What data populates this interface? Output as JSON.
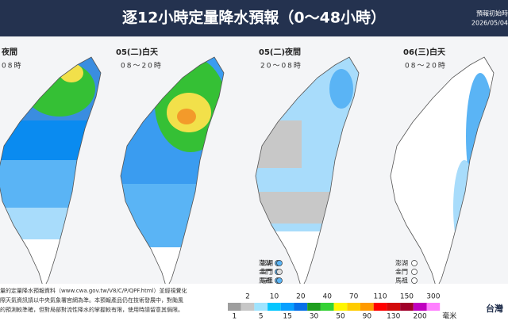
{
  "header": {
    "title": "逐12小時定量降水預報（0～48小時）",
    "issue_label": "預報初始時",
    "issue_time": "2026/05/04"
  },
  "panels": [
    {
      "label": "夜間",
      "time": "08時"
    },
    {
      "label": "05(二)白天",
      "time": "08～20時"
    },
    {
      "label": "05(二)夜間",
      "time": "20～08時"
    },
    {
      "label": "06(三)白天",
      "time": "08～20時"
    }
  ],
  "islands": {
    "names": [
      "澎湖",
      "金門",
      "馬祖"
    ]
  },
  "notes": [
    "量的定量降水預報資料（www.cwa.gov.tw/V8/C/P/QPF.html）並經視覺化",
    "際天氣資訊請以中央氣象署官網為準。本預報產品仍在技術發展中，對颱風",
    "的預測較準確，但對局部對流性降水的掌握較有限，使用時請留意其侷限。"
  ],
  "legend": {
    "upper": [
      2,
      10,
      20,
      40,
      70,
      110,
      150,
      300
    ],
    "lower": [
      1,
      5,
      15,
      30,
      50,
      90,
      130,
      200
    ],
    "unit": "毫米"
  },
  "logo": "台灣"
}
